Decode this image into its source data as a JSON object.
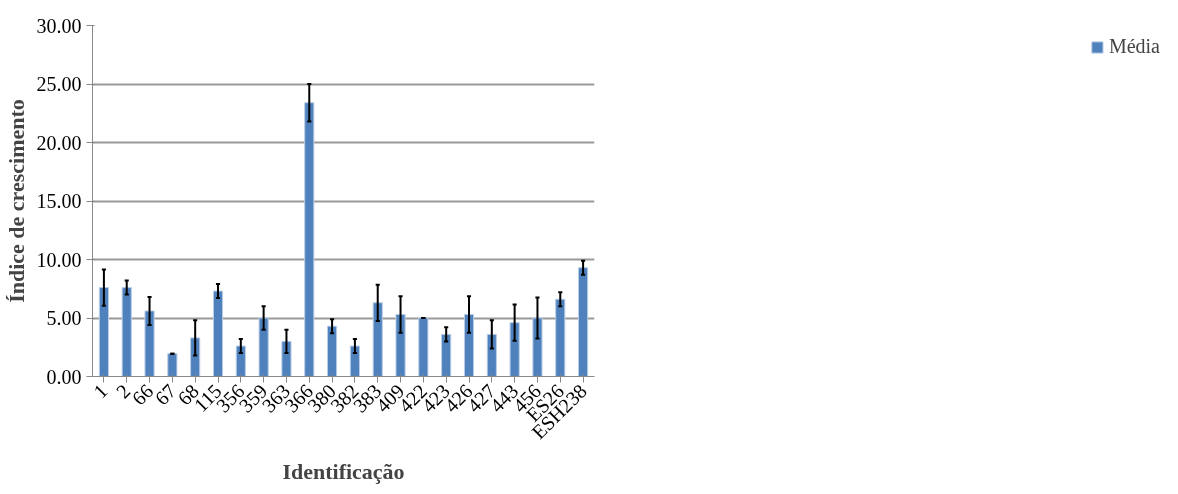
{
  "chart_data": {
    "type": "bar",
    "xlabel": "Identificação",
    "ylabel": "Índice de crescimento",
    "categories": [
      "1",
      "2",
      "66",
      "67",
      "68",
      "115",
      "356",
      "359",
      "363",
      "366",
      "380",
      "382",
      "383",
      "409",
      "422",
      "423",
      "426",
      "427",
      "443",
      "456",
      "ES26",
      "ESH238"
    ],
    "series": [
      {
        "name": "Média",
        "color": "#4f81bd",
        "values": [
          7.6,
          7.6,
          5.6,
          1.95,
          3.3,
          7.3,
          2.6,
          5.0,
          3.0,
          23.4,
          4.3,
          2.6,
          6.3,
          5.3,
          5.0,
          3.6,
          5.3,
          3.6,
          4.6,
          5.0,
          6.6,
          9.3
        ],
        "errors": [
          1.55,
          0.6,
          1.2,
          0,
          1.5,
          0.6,
          0.6,
          1.0,
          1.0,
          1.6,
          0.6,
          0.6,
          1.55,
          1.55,
          0,
          0.6,
          1.55,
          1.2,
          1.55,
          1.75,
          0.6,
          0.6
        ]
      }
    ],
    "ylim": [
      0,
      30
    ],
    "yticks": [
      {
        "value": 0,
        "label": "0.00"
      },
      {
        "value": 5,
        "label": "5.00"
      },
      {
        "value": 10,
        "label": "10.00"
      },
      {
        "value": 15,
        "label": "15.00"
      },
      {
        "value": 20,
        "label": "20.00"
      },
      {
        "value": 25,
        "label": "25.00"
      },
      {
        "value": 30,
        "label": "30.00"
      }
    ],
    "grid": "y",
    "legend": "right"
  }
}
